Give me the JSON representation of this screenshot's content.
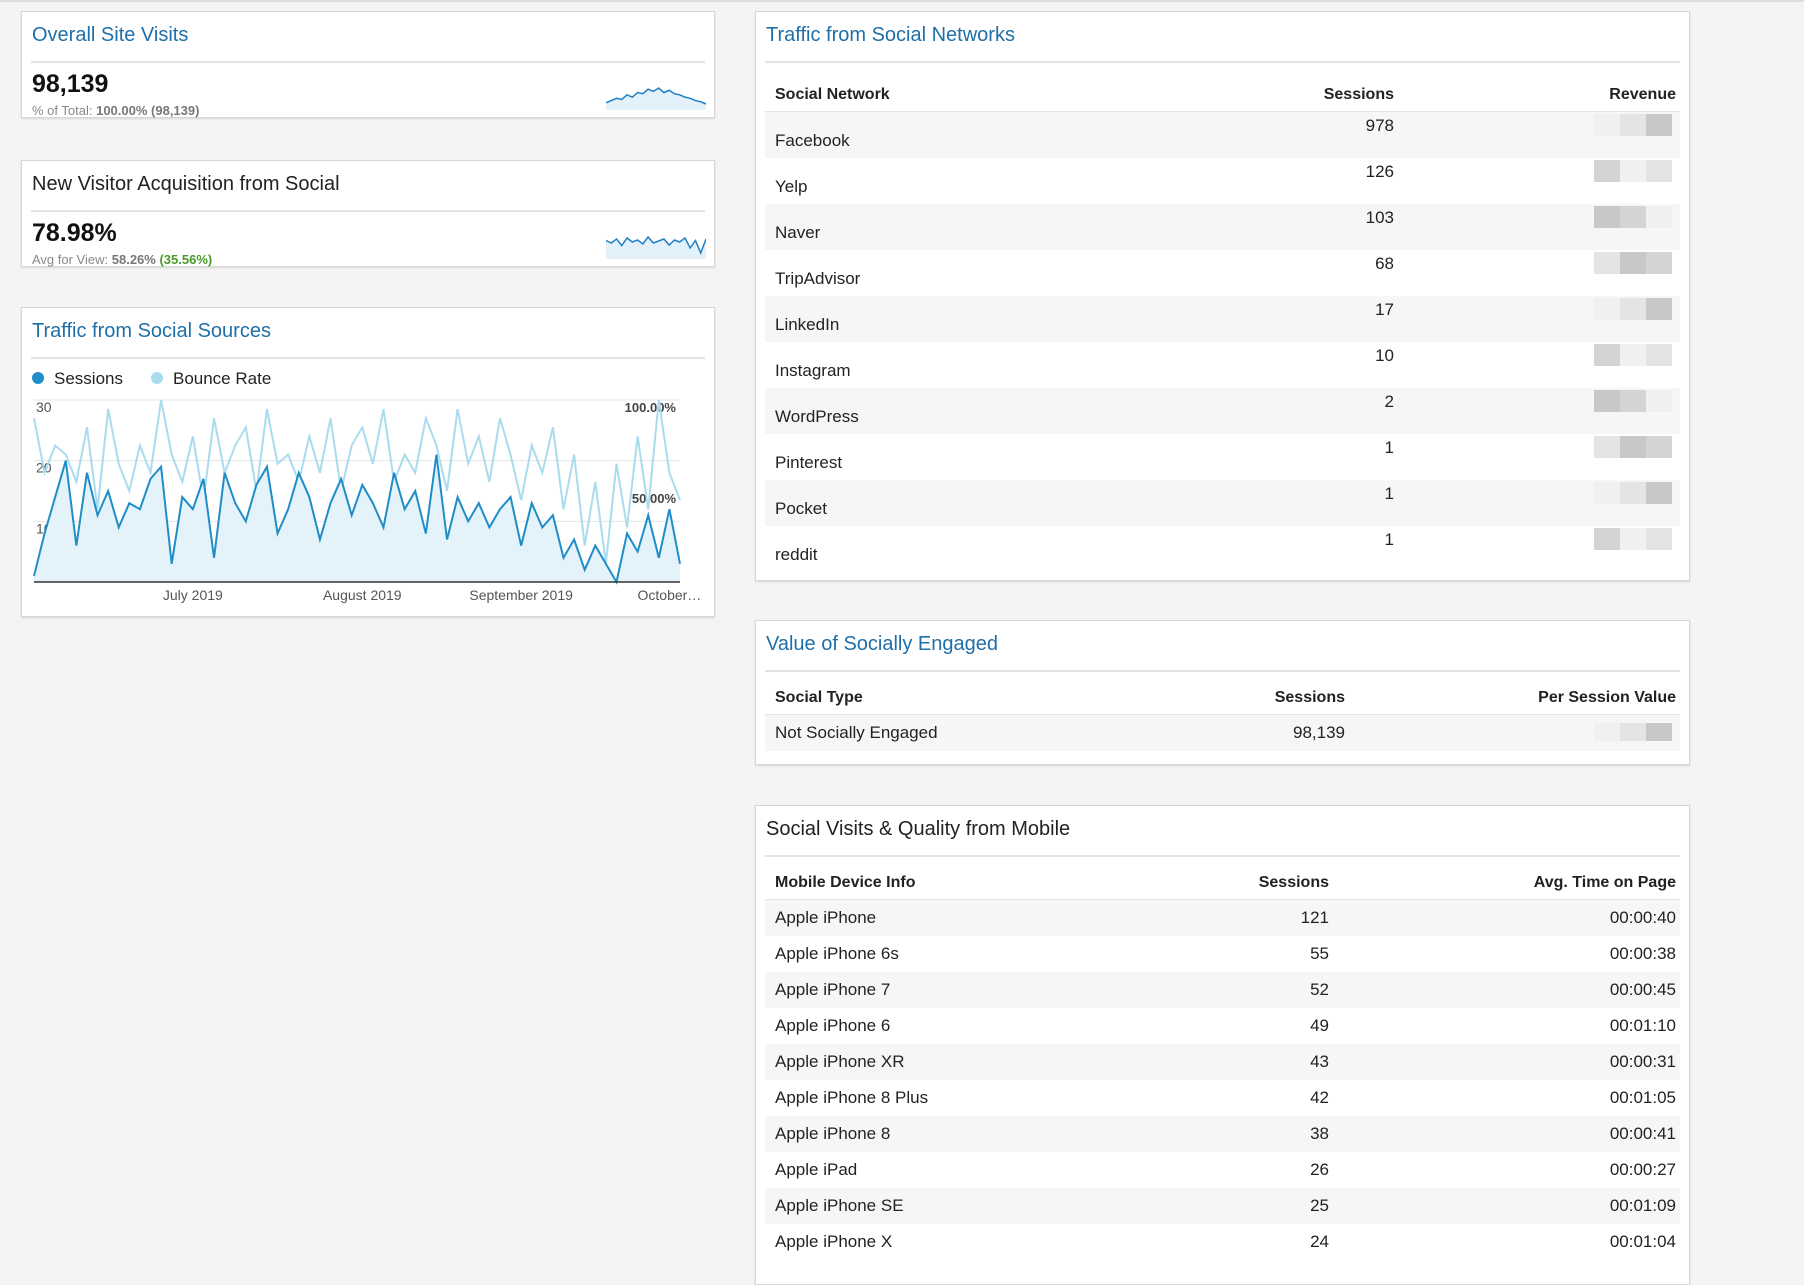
{
  "widgets": [
    {
      "title": "Overall Site Visits",
      "value": "98,139",
      "sub_label": "% of Total:",
      "sub_value": "100.00% (98,139)",
      "sparkline": [
        780,
        800,
        820,
        810,
        850,
        830,
        870,
        860,
        900,
        880,
        910,
        870,
        890,
        860,
        850,
        830,
        820,
        800,
        790,
        770
      ]
    },
    {
      "title": "New Visitor Acquisition from Social",
      "value": "78.98%",
      "sub_label": "Avg for View:",
      "sub_value": "58.26%",
      "sub_extra": "(35.56%)",
      "sparkline": [
        85,
        80,
        88,
        75,
        90,
        82,
        86,
        78,
        92,
        80,
        84,
        88,
        76,
        86,
        82,
        90,
        70,
        85,
        60,
        88
      ]
    }
  ],
  "chart_data": {
    "type": "line",
    "title": "Traffic from Social Sources",
    "series": [
      {
        "name": "Sessions",
        "color": "#1f8dc8",
        "values": [
          1,
          8,
          14,
          20,
          6,
          18,
          11,
          15,
          9,
          13,
          12,
          17,
          19,
          3,
          14,
          12,
          17,
          4,
          18,
          13,
          10,
          16,
          19,
          8,
          12,
          18,
          14,
          7,
          13,
          17,
          11,
          16,
          13,
          9,
          18,
          12,
          15,
          8,
          21,
          7,
          14,
          10,
          13,
          9,
          12,
          14,
          6,
          13,
          9,
          11,
          4,
          7,
          2,
          6,
          3,
          0,
          8,
          5,
          11,
          4,
          12,
          3
        ]
      },
      {
        "name": "Bounce Rate",
        "color": "#a9dcef",
        "axis": "y2",
        "values": [
          90,
          60,
          75,
          70,
          55,
          85,
          40,
          95,
          65,
          50,
          75,
          60,
          100,
          70,
          55,
          80,
          45,
          90,
          60,
          75,
          85,
          50,
          95,
          65,
          70,
          55,
          80,
          60,
          90,
          50,
          75,
          85,
          65,
          95,
          55,
          70,
          60,
          90,
          75,
          50,
          95,
          65,
          80,
          55,
          90,
          70,
          45,
          75,
          60,
          85,
          40,
          70,
          20,
          55,
          10,
          65,
          30,
          80,
          40,
          100,
          60,
          45
        ]
      }
    ],
    "xlim": [
      0,
      61
    ],
    "xticks": [
      {
        "value": 15,
        "label": "July 2019"
      },
      {
        "value": 31,
        "label": "August 2019"
      },
      {
        "value": 46,
        "label": "September 2019"
      },
      {
        "value": 60,
        "label": "October…"
      }
    ],
    "ylim": [
      0,
      30
    ],
    "yticks": [
      10,
      20,
      30
    ],
    "y2lim": [
      0,
      100
    ],
    "y2ticks": [
      {
        "value": 50,
        "label": "50.00%"
      },
      {
        "value": 100,
        "label": "100.00%"
      }
    ],
    "grid": true,
    "legend": "top"
  },
  "tables": [
    {
      "title": "Traffic from Social Networks",
      "columns": [
        "Social Network",
        "Sessions",
        "Revenue"
      ],
      "rows": [
        [
          "Facebook",
          "978"
        ],
        [
          "Yelp",
          "126"
        ],
        [
          "Naver",
          "103"
        ],
        [
          "TripAdvisor",
          "68"
        ],
        [
          "LinkedIn",
          "17"
        ],
        [
          "Instagram",
          "10"
        ],
        [
          "WordPress",
          "2"
        ],
        [
          "Pinterest",
          "1"
        ],
        [
          "Pocket",
          "1"
        ],
        [
          "reddit",
          "1"
        ]
      ]
    },
    {
      "title": "Value of Socially Engaged",
      "columns": [
        "Social Type",
        "Sessions",
        "Per Session Value"
      ],
      "rows": [
        [
          "Not Socially Engaged",
          "98,139"
        ]
      ]
    },
    {
      "title": "Social Visits & Quality from Mobile",
      "columns": [
        "Mobile Device Info",
        "Sessions",
        "Avg. Time on Page"
      ],
      "rows": [
        [
          "Apple iPhone",
          "121",
          "00:00:40"
        ],
        [
          "Apple iPhone 6s",
          "55",
          "00:00:38"
        ],
        [
          "Apple iPhone 7",
          "52",
          "00:00:45"
        ],
        [
          "Apple iPhone 6",
          "49",
          "00:01:10"
        ],
        [
          "Apple iPhone XR",
          "43",
          "00:00:31"
        ],
        [
          "Apple iPhone 8 Plus",
          "42",
          "00:01:05"
        ],
        [
          "Apple iPhone 8",
          "38",
          "00:00:41"
        ],
        [
          "Apple iPad",
          "26",
          "00:00:27"
        ],
        [
          "Apple iPhone SE",
          "25",
          "00:01:09"
        ],
        [
          "Apple iPhone X",
          "24",
          "00:01:04"
        ]
      ]
    }
  ]
}
